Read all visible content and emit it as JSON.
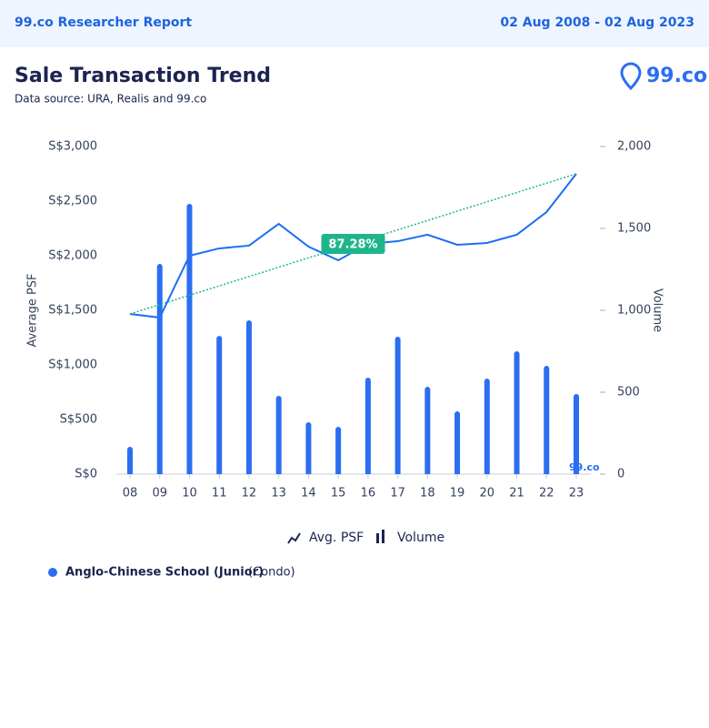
{
  "header": {
    "title": "99.co Researcher Report",
    "date_range": "02 Aug 2008 - 02 Aug 2023"
  },
  "logo": "99.co",
  "chart_data": {
    "type": "combo",
    "title": "Sale Transaction Trend",
    "subtitle": "Data source: URA, Realis and 99.co",
    "y_label": "Average PSF",
    "y2_label": "Volume",
    "watermark": "99.co",
    "categories": [
      "08",
      "09",
      "10",
      "11",
      "12",
      "13",
      "14",
      "15",
      "16",
      "17",
      "18",
      "19",
      "20",
      "21",
      "22",
      "23"
    ],
    "series": [
      {
        "name": "Avg. PSF",
        "type": "line",
        "axis": "y",
        "color": "#1a6ef5",
        "values": [
          1467,
          1433,
          2000,
          2067,
          2092,
          2292,
          2083,
          1958,
          2108,
          2133,
          2192,
          2100,
          2117,
          2192,
          2400,
          2750
        ]
      },
      {
        "name": "Volume",
        "type": "bar",
        "axis": "y2",
        "color": "#2a6ef2",
        "values": [
          167,
          1283,
          1650,
          844,
          939,
          478,
          317,
          289,
          589,
          839,
          533,
          383,
          583,
          750,
          661,
          489
        ]
      }
    ],
    "trend": {
      "label": "87.28%",
      "color": "#1fb58a"
    },
    "ylim": [
      0,
      3000
    ],
    "yticks": [
      {
        "value": 0,
        "label": "S$0"
      },
      {
        "value": 500,
        "label": "S$500"
      },
      {
        "value": 1000,
        "label": "S$1,000"
      },
      {
        "value": 1500,
        "label": "S$1,500"
      },
      {
        "value": 2000,
        "label": "S$2,000"
      },
      {
        "value": 2500,
        "label": "S$2,500"
      },
      {
        "value": 3000,
        "label": "S$3,000"
      }
    ],
    "y2lim": [
      0,
      2000
    ],
    "y2ticks": [
      0,
      500,
      {
        "value": 1000,
        "label": "1,000"
      },
      {
        "value": 1500,
        "label": "1,500"
      },
      {
        "value": 2000,
        "label": "2,000"
      }
    ]
  },
  "school": {
    "name": "Anglo-Chinese School (Junior)",
    "kind": "(Condo)"
  }
}
